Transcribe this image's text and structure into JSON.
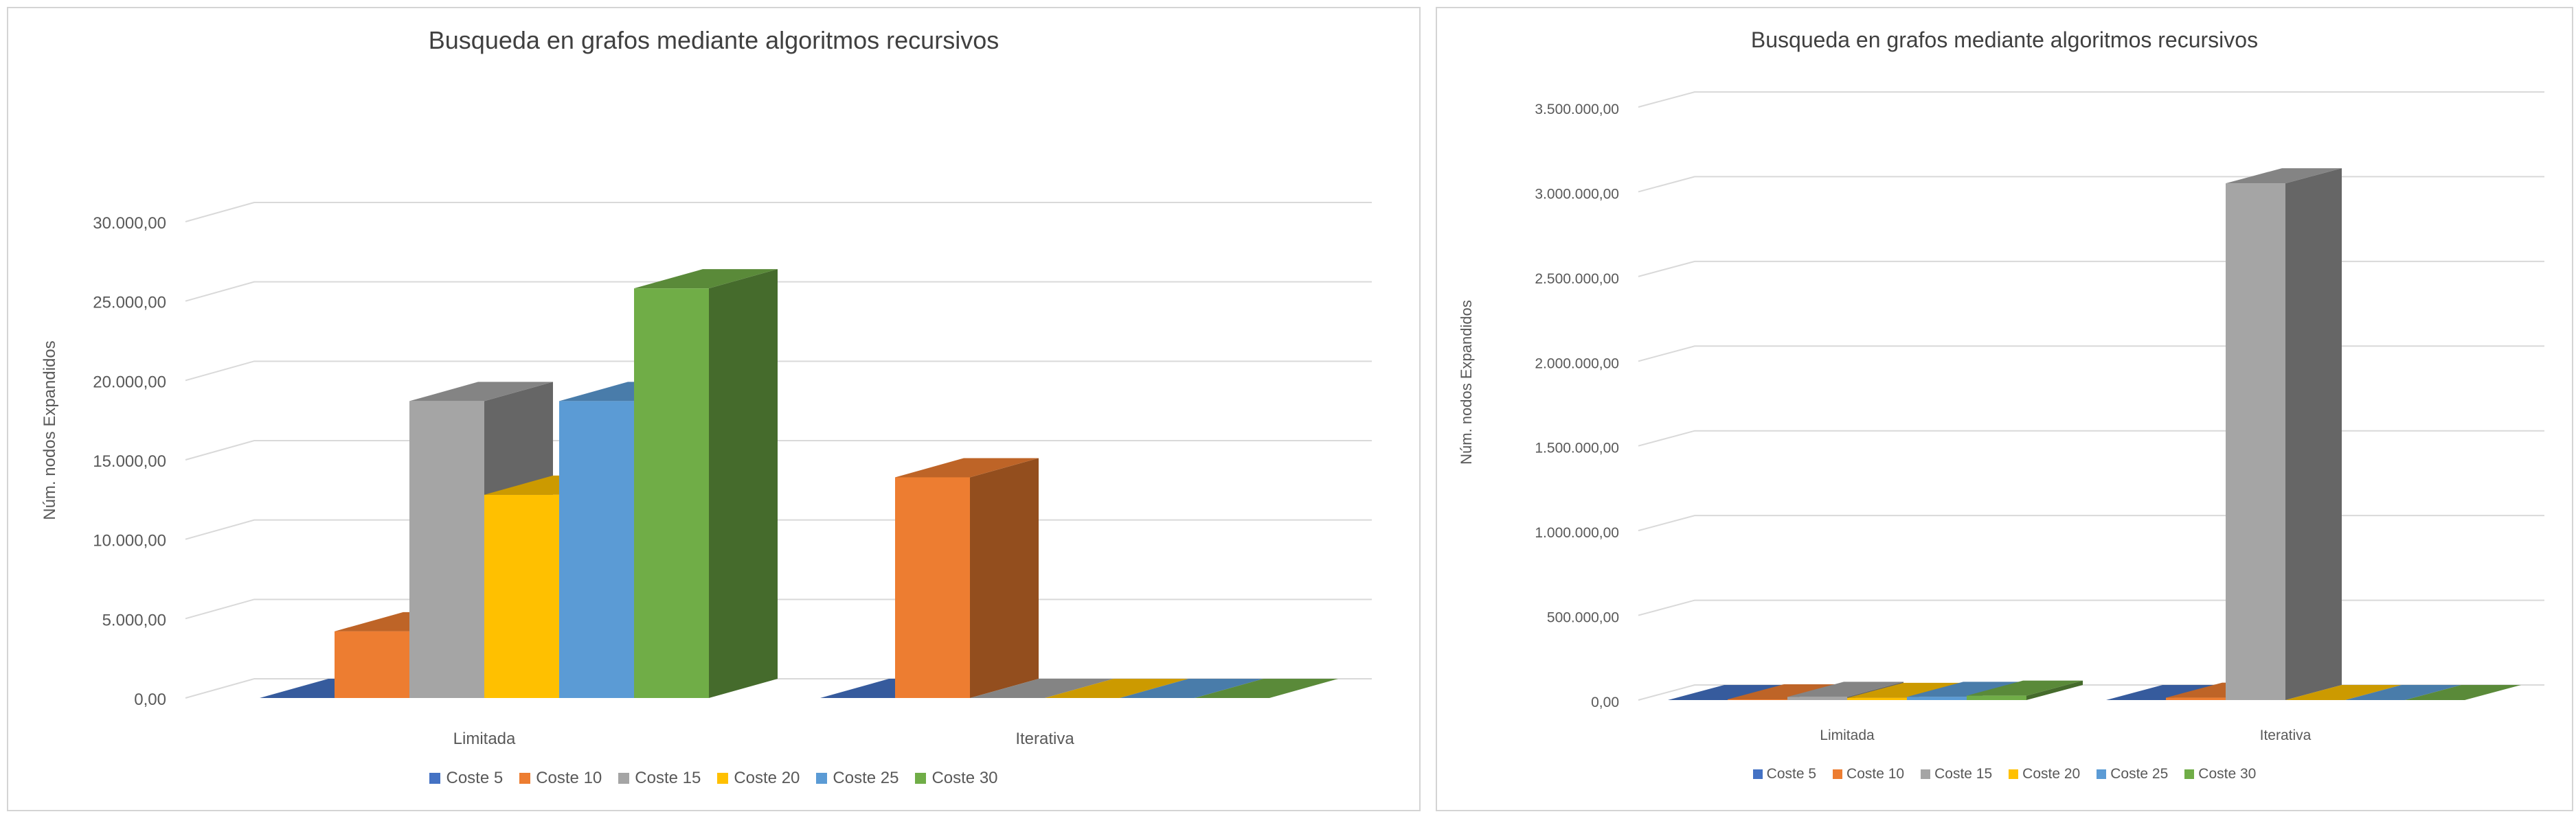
{
  "chart_data": [
    {
      "type": "bar",
      "title": "Busqueda  en grafos mediante algoritmos recursivos",
      "ylabel": "Núm. nodos Expandidos",
      "xlabel": "",
      "categories": [
        "Limitada",
        "Iterativa"
      ],
      "ylim": [
        0,
        30000
      ],
      "ytick_values": [
        0,
        5000,
        10000,
        15000,
        20000,
        25000,
        30000
      ],
      "ytick_labels": [
        "0,00",
        "5.000,00",
        "10.000,00",
        "15.000,00",
        "20.000,00",
        "25.000,00",
        "30.000,00"
      ],
      "grid": true,
      "style": "3d-clustered-column",
      "legend_position": "bottom",
      "series": [
        {
          "name": "Coste 5",
          "values": [
            0,
            0
          ]
        },
        {
          "name": "Coste 10",
          "values": [
            4200,
            13900
          ]
        },
        {
          "name": "Coste 15",
          "values": [
            18700,
            0
          ]
        },
        {
          "name": "Coste 20",
          "values": [
            12800,
            0
          ]
        },
        {
          "name": "Coste 25",
          "values": [
            18700,
            0
          ]
        },
        {
          "name": "Coste 30",
          "values": [
            25800,
            0
          ]
        }
      ]
    },
    {
      "type": "bar",
      "title": "Busqueda  en grafos mediante algoritmos recursivos",
      "ylabel": "Núm. nodos Expandidos",
      "xlabel": "",
      "categories": [
        "Limitada",
        "Iterativa"
      ],
      "ylim": [
        0,
        3500000
      ],
      "ytick_values": [
        0,
        500000,
        1000000,
        1500000,
        2000000,
        2500000,
        3000000,
        3500000
      ],
      "ytick_labels": [
        "0,00",
        "500.000,00",
        "1.000.000,00",
        "1.500.000,00",
        "2.000.000,00",
        "2.500.000,00",
        "3.000.000,00",
        "3.500.000,00"
      ],
      "grid": true,
      "style": "3d-clustered-column",
      "legend_position": "bottom",
      "series": [
        {
          "name": "Coste 5",
          "values": [
            0,
            0
          ]
        },
        {
          "name": "Coste 10",
          "values": [
            4200,
            13900
          ]
        },
        {
          "name": "Coste 15",
          "values": [
            18700,
            3050000
          ]
        },
        {
          "name": "Coste 20",
          "values": [
            12800,
            0
          ]
        },
        {
          "name": "Coste 25",
          "values": [
            18700,
            0
          ]
        },
        {
          "name": "Coste 30",
          "values": [
            25800,
            0
          ]
        }
      ]
    }
  ],
  "series_colors": [
    "#4472C4",
    "#ED7D31",
    "#A5A5A5",
    "#FFC000",
    "#5B9BD5",
    "#70AD47"
  ]
}
